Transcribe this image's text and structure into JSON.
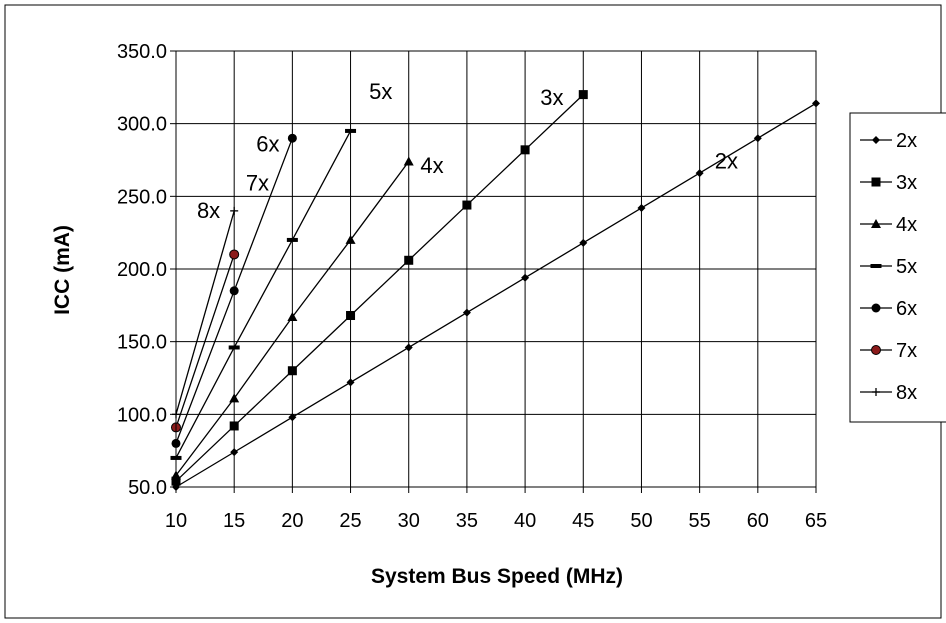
{
  "chart_data": {
    "type": "line",
    "title": "",
    "xlabel": "System Bus Speed (MHz)",
    "ylabel": "ICC (mA)",
    "xlim": [
      10,
      65
    ],
    "ylim": [
      50,
      350
    ],
    "x_ticks": [
      "10",
      "15",
      "20",
      "25",
      "30",
      "35",
      "40",
      "45",
      "50",
      "55",
      "60",
      "65"
    ],
    "y_ticks": [
      "50.0",
      "100.0",
      "150.0",
      "200.0",
      "250.0",
      "300.0",
      "350.0"
    ],
    "grid": true,
    "legend_position": "right",
    "series": [
      {
        "name": "2x",
        "marker": "diamond",
        "color": "#000000",
        "x": [
          10,
          15,
          20,
          25,
          30,
          35,
          40,
          45,
          50,
          55,
          60,
          65
        ],
        "y": [
          50,
          74,
          98,
          122,
          146,
          170,
          194,
          218,
          242,
          266,
          290,
          314
        ]
      },
      {
        "name": "3x",
        "marker": "square",
        "color": "#000000",
        "x": [
          10,
          15,
          20,
          25,
          30,
          35,
          40,
          45
        ],
        "y": [
          54,
          92,
          130,
          168,
          206,
          244,
          282,
          320
        ]
      },
      {
        "name": "4x",
        "marker": "triangle",
        "color": "#000000",
        "x": [
          10,
          15,
          20,
          25,
          30
        ],
        "y": [
          58,
          111,
          167,
          220,
          274
        ]
      },
      {
        "name": "5x",
        "marker": "dash",
        "color": "#000000",
        "x": [
          10,
          15,
          20,
          25
        ],
        "y": [
          70,
          146,
          220,
          295
        ]
      },
      {
        "name": "6x",
        "marker": "circle",
        "color": "#000000",
        "x": [
          10,
          15,
          20
        ],
        "y": [
          80,
          185,
          290
        ]
      },
      {
        "name": "7x",
        "marker": "circle-red",
        "color": "#8b1a1a",
        "x": [
          10,
          15
        ],
        "y": [
          91,
          210
        ]
      },
      {
        "name": "8x",
        "marker": "plus",
        "color": "#000000",
        "x": [
          10,
          15
        ],
        "y": [
          100,
          240
        ]
      }
    ],
    "annotations": [
      {
        "text": "2x",
        "x": 56.3,
        "y": 269
      },
      {
        "text": "3x",
        "x": 41.3,
        "y": 313
      },
      {
        "text": "4x",
        "x": 31.0,
        "y": 266
      },
      {
        "text": "5x",
        "x": 26.6,
        "y": 317
      },
      {
        "text": "6x",
        "x": 16.9,
        "y": 281
      },
      {
        "text": "7x",
        "x": 16.0,
        "y": 254
      },
      {
        "text": "8x",
        "x": 11.8,
        "y": 235
      }
    ]
  }
}
